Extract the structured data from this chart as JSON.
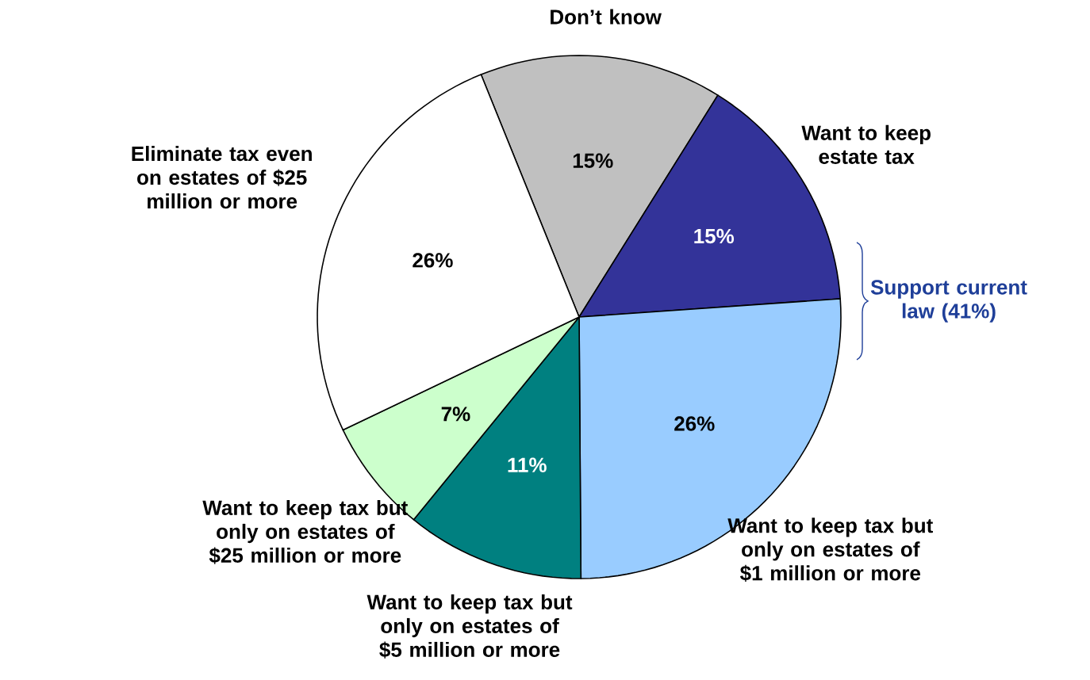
{
  "chart_data": {
    "type": "pie",
    "categories": [
      "Don’t know",
      "Want to keep estate tax",
      "Want to keep tax but only on estates of $1 million or more",
      "Want to keep tax but only on estates of $5 million or more",
      "Want to keep tax but only on estates of $25 million or more",
      "Eliminate tax even on estates of $25 million or more"
    ],
    "values": [
      15,
      15,
      26,
      11,
      7,
      26
    ],
    "value_labels": [
      "15%",
      "15%",
      "26%",
      "11%",
      "7%",
      "26%"
    ],
    "colors": [
      "#c0c0c0",
      "#333399",
      "#99ccff",
      "#008080",
      "#ccffcc",
      "#ffffff"
    ],
    "annotations": [
      "Support current law (41%)"
    ]
  }
}
